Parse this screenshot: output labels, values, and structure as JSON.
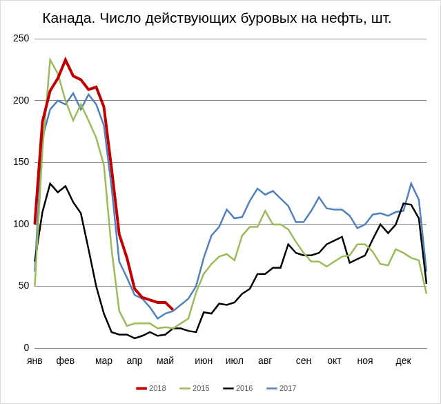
{
  "chart_data": {
    "type": "line",
    "title": "Канада. Число действующих буровых на нефть, шт.",
    "categories": [
      "янв",
      null,
      null,
      null,
      "фев",
      null,
      null,
      null,
      null,
      "мар",
      null,
      null,
      null,
      "апр",
      null,
      null,
      null,
      "май",
      null,
      null,
      null,
      null,
      "июн",
      null,
      null,
      null,
      "июл",
      null,
      null,
      null,
      "авг",
      null,
      null,
      null,
      null,
      "сен",
      null,
      null,
      null,
      "окт",
      null,
      null,
      null,
      "ноя",
      null,
      null,
      null,
      null,
      "дек",
      null,
      null,
      null
    ],
    "series": [
      {
        "name": "2017",
        "color": "#4f81bd",
        "values": [
          62,
          170,
          193,
          200,
          197,
          206,
          193,
          205,
          197,
          180,
          130,
          70,
          57,
          43,
          40,
          33,
          24,
          28,
          30,
          35,
          40,
          50,
          73,
          91,
          98,
          112,
          105,
          106,
          119,
          129,
          124,
          127,
          121,
          115,
          102,
          102,
          111,
          122,
          113,
          112,
          112,
          107,
          97,
          100,
          108,
          109,
          107,
          110,
          111,
          133,
          120,
          62
        ]
      },
      {
        "name": "2016",
        "color": "#000000",
        "values": [
          70,
          110,
          133,
          126,
          131,
          118,
          109,
          80,
          50,
          28,
          13,
          11,
          11,
          8,
          10,
          13,
          10,
          11,
          16,
          16,
          14,
          13,
          29,
          28,
          36,
          35,
          37,
          44,
          48,
          60,
          60,
          65,
          65,
          84,
          77,
          75,
          75,
          77,
          84,
          87,
          90,
          69,
          72,
          75,
          88,
          100,
          93,
          100,
          117,
          116,
          105,
          52
        ]
      },
      {
        "name": "2015",
        "color": "#9bbb59",
        "values": [
          50,
          160,
          233,
          222,
          200,
          184,
          197,
          184,
          170,
          148,
          80,
          30,
          18,
          20,
          20,
          20,
          16,
          17,
          16,
          20,
          24,
          45,
          60,
          68,
          74,
          76,
          71,
          91,
          98,
          98,
          111,
          100,
          100,
          96,
          86,
          77,
          70,
          70,
          66,
          70,
          74,
          75,
          84,
          84,
          78,
          68,
          67,
          80,
          77,
          73,
          71,
          44
        ]
      },
      {
        "name": "2018",
        "color": "#c00000",
        "values": [
          100,
          183,
          208,
          218,
          233,
          220,
          217,
          209,
          211,
          195,
          145,
          92,
          73,
          48,
          41,
          39,
          37,
          37,
          31,
          null,
          null,
          null,
          null,
          null,
          null,
          null,
          null,
          null,
          null,
          null,
          null,
          null,
          null,
          null,
          null,
          null,
          null,
          null,
          null,
          null,
          null,
          null,
          null,
          null,
          null,
          null,
          null,
          null,
          null,
          null,
          null,
          null
        ]
      }
    ],
    "ylim": [
      0,
      250
    ],
    "yticks": [
      0,
      50,
      100,
      150,
      200,
      250
    ],
    "grid": true,
    "legend": "bottom"
  }
}
